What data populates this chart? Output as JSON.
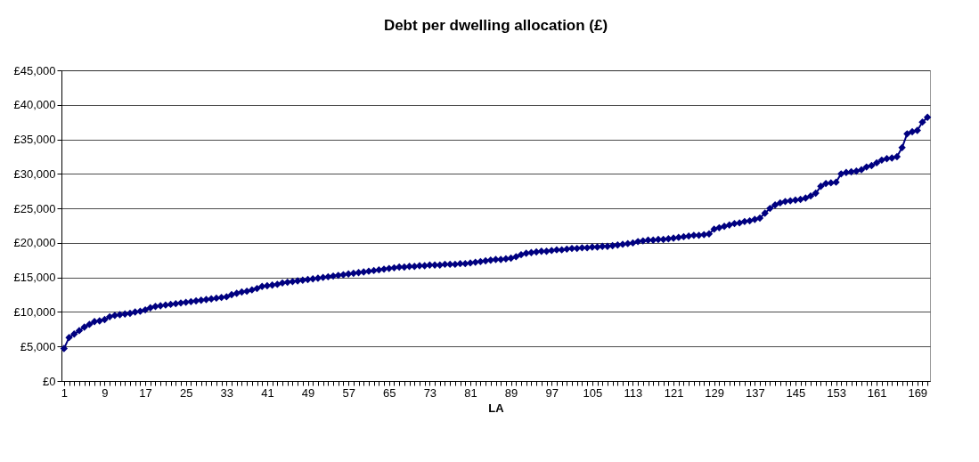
{
  "chart_data": {
    "type": "line",
    "title": "Debt per dwelling allocation (£)",
    "xlabel": "LA",
    "categories": [
      "1",
      null,
      null,
      null,
      null,
      null,
      null,
      null,
      "9",
      null,
      null,
      null,
      null,
      null,
      null,
      null,
      "17",
      null,
      null,
      null,
      null,
      null,
      null,
      null,
      "25",
      null,
      null,
      null,
      null,
      null,
      null,
      null,
      "33",
      null,
      null,
      null,
      null,
      null,
      null,
      null,
      "41",
      null,
      null,
      null,
      null,
      null,
      null,
      null,
      "49",
      null,
      null,
      null,
      null,
      null,
      null,
      null,
      "57",
      null,
      null,
      null,
      null,
      null,
      null,
      null,
      "65",
      null,
      null,
      null,
      null,
      null,
      null,
      null,
      "73",
      null,
      null,
      null,
      null,
      null,
      null,
      null,
      "81",
      null,
      null,
      null,
      null,
      null,
      null,
      null,
      "89",
      null,
      null,
      null,
      null,
      null,
      null,
      null,
      "97",
      null,
      null,
      null,
      null,
      null,
      null,
      null,
      "105",
      null,
      null,
      null,
      null,
      null,
      null,
      null,
      "113",
      null,
      null,
      null,
      null,
      null,
      null,
      null,
      "121",
      null,
      null,
      null,
      null,
      null,
      null,
      null,
      "129",
      null,
      null,
      null,
      null,
      null,
      null,
      null,
      "137",
      null,
      null,
      null,
      null,
      null,
      null,
      null,
      "145",
      null,
      null,
      null,
      null,
      null,
      null,
      null,
      "153",
      null,
      null,
      null,
      null,
      null,
      null,
      null,
      "161",
      null,
      null,
      null,
      null,
      null,
      null,
      null,
      "169",
      null,
      null
    ],
    "series": [
      {
        "color": "#000080",
        "values": [
          4700,
          6300,
          6800,
          7300,
          7800,
          8200,
          8600,
          8700,
          8900,
          9300,
          9500,
          9600,
          9700,
          9800,
          10000,
          10100,
          10300,
          10600,
          10800,
          10900,
          11000,
          11100,
          11200,
          11300,
          11400,
          11500,
          11600,
          11700,
          11800,
          11900,
          12000,
          12100,
          12200,
          12500,
          12700,
          12900,
          13000,
          13200,
          13400,
          13700,
          13800,
          13900,
          14000,
          14200,
          14300,
          14400,
          14500,
          14600,
          14700,
          14800,
          14900,
          15000,
          15100,
          15200,
          15300,
          15400,
          15500,
          15600,
          15700,
          15800,
          15900,
          16000,
          16100,
          16200,
          16300,
          16400,
          16500,
          16500,
          16600,
          16600,
          16700,
          16700,
          16800,
          16800,
          16800,
          16900,
          16900,
          16900,
          17000,
          17000,
          17100,
          17200,
          17300,
          17400,
          17500,
          17600,
          17600,
          17700,
          17800,
          18000,
          18300,
          18500,
          18600,
          18700,
          18800,
          18800,
          18900,
          19000,
          19000,
          19100,
          19200,
          19200,
          19300,
          19300,
          19400,
          19400,
          19500,
          19500,
          19600,
          19700,
          19800,
          19900,
          20000,
          20200,
          20300,
          20400,
          20400,
          20500,
          20500,
          20600,
          20700,
          20800,
          20900,
          21000,
          21100,
          21100,
          21200,
          21300,
          22000,
          22200,
          22400,
          22600,
          22800,
          22900,
          23100,
          23200,
          23400,
          23600,
          24300,
          25000,
          25500,
          25800,
          26000,
          26100,
          26200,
          26300,
          26500,
          26800,
          27200,
          28200,
          28600,
          28700,
          28800,
          30000,
          30200,
          30300,
          30400,
          30600,
          31000,
          31200,
          31600,
          32000,
          32200,
          32300,
          32500,
          33800,
          35800,
          36100,
          36300,
          37500,
          38200
        ]
      }
    ],
    "ylim": [
      0,
      45000
    ],
    "yticks": [
      {
        "value": 0,
        "label": "£0"
      },
      {
        "value": 5000,
        "label": "£5,000"
      },
      {
        "value": 10000,
        "label": "£10,000"
      },
      {
        "value": 15000,
        "label": "£15,000"
      },
      {
        "value": 20000,
        "label": "£20,000"
      },
      {
        "value": 25000,
        "label": "£25,000"
      },
      {
        "value": 30000,
        "label": "£30,000"
      },
      {
        "value": 35000,
        "label": "£35,000"
      },
      {
        "value": 40000,
        "label": "£40,000"
      },
      {
        "value": 45000,
        "label": "£45,000"
      }
    ],
    "grid": "y",
    "marker": "diamond",
    "line_style": "solid"
  }
}
